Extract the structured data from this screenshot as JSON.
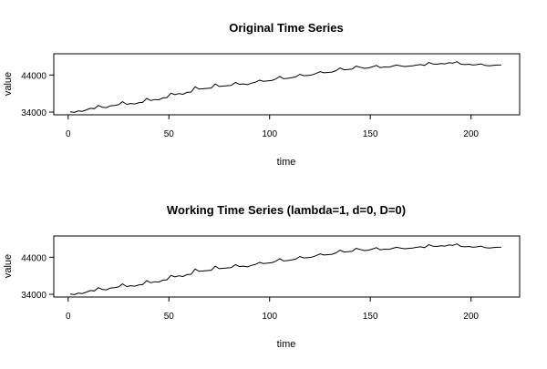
{
  "chart_data": [
    {
      "type": "line",
      "title": "Original Time Series",
      "xlabel": "time",
      "ylabel": "value",
      "xlim": [
        1,
        216
      ],
      "ylim": [
        34000,
        49000
      ],
      "xticks": [
        {
          "value": 50,
          "label": "50"
        },
        {
          "value": 100,
          "label": "100"
        },
        {
          "value": 150,
          "label": "150"
        },
        {
          "value": 200,
          "label": "200"
        },
        {
          "value": 0,
          "label": "0"
        }
      ],
      "yticks": [
        {
          "value": 34000,
          "label": "34000"
        },
        {
          "value": 44000,
          "label": "44000"
        }
      ],
      "grid": false,
      "series": [
        {
          "color": "#000000",
          "x": [
            1,
            3,
            5,
            7,
            9,
            11,
            13,
            15,
            17,
            19,
            21,
            23,
            25,
            27,
            29,
            31,
            33,
            35,
            37,
            39,
            41,
            43,
            45,
            47,
            49,
            51,
            53,
            55,
            57,
            59,
            61,
            63,
            65,
            67,
            69,
            71,
            73,
            75,
            77,
            79,
            81,
            83,
            85,
            87,
            89,
            91,
            93,
            95,
            97,
            99,
            101,
            103,
            105,
            107,
            109,
            111,
            113,
            115,
            117,
            119,
            121,
            123,
            125,
            127,
            129,
            131,
            133,
            135,
            137,
            139,
            141,
            143,
            145,
            147,
            149,
            151,
            153,
            155,
            157,
            159,
            161,
            163,
            165,
            167,
            169,
            171,
            173,
            175,
            177,
            179,
            181,
            183,
            185,
            187,
            189,
            191,
            193,
            195,
            197,
            199,
            201,
            203,
            205,
            207,
            209,
            211,
            213,
            215
          ],
          "y": [
            34100,
            33900,
            34300,
            34200,
            34600,
            35000,
            34900,
            35800,
            35300,
            35200,
            35700,
            35800,
            36000,
            36800,
            36100,
            36300,
            36200,
            36500,
            36600,
            37700,
            37100,
            37400,
            37300,
            37800,
            37900,
            39100,
            38700,
            39000,
            38800,
            39300,
            39400,
            40800,
            40200,
            40300,
            40400,
            40500,
            41600,
            40900,
            41000,
            41100,
            41200,
            42000,
            41500,
            41600,
            41400,
            41800,
            42100,
            42600,
            42300,
            42400,
            42500,
            42900,
            43600,
            43000,
            43100,
            43300,
            43500,
            44200,
            43800,
            43900,
            44000,
            44400,
            44900,
            44600,
            44700,
            44800,
            45200,
            45900,
            45400,
            45500,
            45600,
            46400,
            46100,
            45800,
            45900,
            46200,
            46600,
            46000,
            46200,
            46100,
            46400,
            46700,
            46500,
            46300,
            46400,
            46500,
            46700,
            46800,
            46600,
            47400,
            47000,
            46900,
            47100,
            47000,
            47300,
            47200,
            47600,
            46900,
            46800,
            46900,
            46700,
            46800,
            47000,
            46600,
            46500,
            46600,
            46700,
            46700
          ]
        }
      ]
    },
    {
      "type": "line",
      "title": "Working Time Series (lambda=1, d=0, D=0)",
      "xlabel": "time",
      "ylabel": "value",
      "xlim": [
        1,
        216
      ],
      "ylim": [
        34000,
        49000
      ],
      "xticks": [
        {
          "value": 0,
          "label": "0"
        },
        {
          "value": 50,
          "label": "50"
        },
        {
          "value": 100,
          "label": "100"
        },
        {
          "value": 150,
          "label": "150"
        },
        {
          "value": 200,
          "label": "200"
        }
      ],
      "yticks": [
        {
          "value": 34000,
          "label": "34000"
        },
        {
          "value": 44000,
          "label": "44000"
        }
      ],
      "grid": false,
      "series": [
        {
          "color": "#000000",
          "x": [
            1,
            3,
            5,
            7,
            9,
            11,
            13,
            15,
            17,
            19,
            21,
            23,
            25,
            27,
            29,
            31,
            33,
            35,
            37,
            39,
            41,
            43,
            45,
            47,
            49,
            51,
            53,
            55,
            57,
            59,
            61,
            63,
            65,
            67,
            69,
            71,
            73,
            75,
            77,
            79,
            81,
            83,
            85,
            87,
            89,
            91,
            93,
            95,
            97,
            99,
            101,
            103,
            105,
            107,
            109,
            111,
            113,
            115,
            117,
            119,
            121,
            123,
            125,
            127,
            129,
            131,
            133,
            135,
            137,
            139,
            141,
            143,
            145,
            147,
            149,
            151,
            153,
            155,
            157,
            159,
            161,
            163,
            165,
            167,
            169,
            171,
            173,
            175,
            177,
            179,
            181,
            183,
            185,
            187,
            189,
            191,
            193,
            195,
            197,
            199,
            201,
            203,
            205,
            207,
            209,
            211,
            213,
            215
          ],
          "y": [
            34100,
            33900,
            34300,
            34200,
            34600,
            35000,
            34900,
            35800,
            35300,
            35200,
            35700,
            35800,
            36000,
            36800,
            36100,
            36300,
            36200,
            36500,
            36600,
            37700,
            37100,
            37400,
            37300,
            37800,
            37900,
            39100,
            38700,
            39000,
            38800,
            39300,
            39400,
            40800,
            40200,
            40300,
            40400,
            40500,
            41600,
            40900,
            41000,
            41100,
            41200,
            42000,
            41500,
            41600,
            41400,
            41800,
            42100,
            42600,
            42300,
            42400,
            42500,
            42900,
            43600,
            43000,
            43100,
            43300,
            43500,
            44200,
            43800,
            43900,
            44000,
            44400,
            44900,
            44600,
            44700,
            44800,
            45200,
            45900,
            45400,
            45500,
            45600,
            46400,
            46100,
            45800,
            45900,
            46200,
            46600,
            46000,
            46200,
            46100,
            46400,
            46700,
            46500,
            46300,
            46400,
            46500,
            46700,
            46800,
            46600,
            47400,
            47000,
            46900,
            47100,
            47000,
            47300,
            47200,
            47600,
            46900,
            46800,
            46900,
            46700,
            46800,
            47000,
            46600,
            46500,
            46600,
            46700,
            46700
          ]
        }
      ]
    }
  ]
}
